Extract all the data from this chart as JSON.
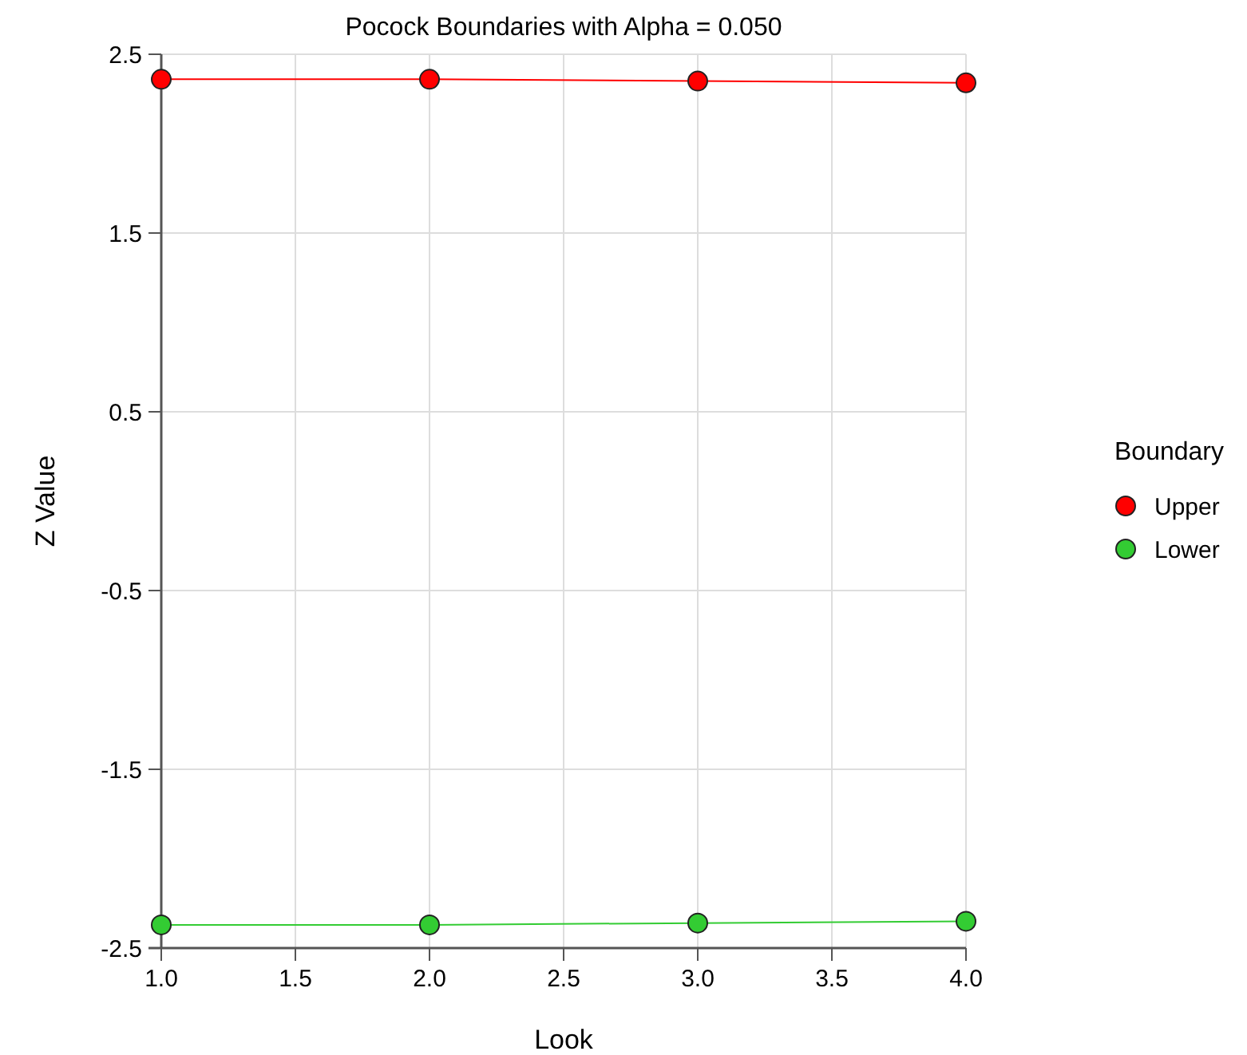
{
  "chart_data": {
    "type": "line",
    "title": "Pocock Boundaries with Alpha = 0.050",
    "xlabel": "Look",
    "ylabel": "Z Value",
    "legend_title": "Boundary",
    "x": [
      1,
      2,
      3,
      4
    ],
    "series": [
      {
        "name": "Upper",
        "color": "#ff0000",
        "values": [
          2.36,
          2.36,
          2.35,
          2.34
        ]
      },
      {
        "name": "Lower",
        "color": "#33cc33",
        "values": [
          -2.37,
          -2.37,
          -2.36,
          -2.35
        ]
      }
    ],
    "xlim": [
      1,
      4
    ],
    "xticks": [
      {
        "value": 1,
        "label": "1.0"
      },
      {
        "value": 1.5,
        "label": "1.5"
      },
      {
        "value": 2,
        "label": "2.0"
      },
      {
        "value": 2.5,
        "label": "2.5"
      },
      {
        "value": 3,
        "label": "3.0"
      },
      {
        "value": 3.5,
        "label": "3.5"
      },
      {
        "value": 4,
        "label": "4.0"
      }
    ],
    "ylim": [
      -2.5,
      2.5
    ],
    "yticks": [
      -2.5,
      -1.5,
      -0.5,
      0.5,
      1.5,
      2.5
    ],
    "grid": true,
    "legend": "right",
    "marker": "circle",
    "line_style": "solid"
  }
}
